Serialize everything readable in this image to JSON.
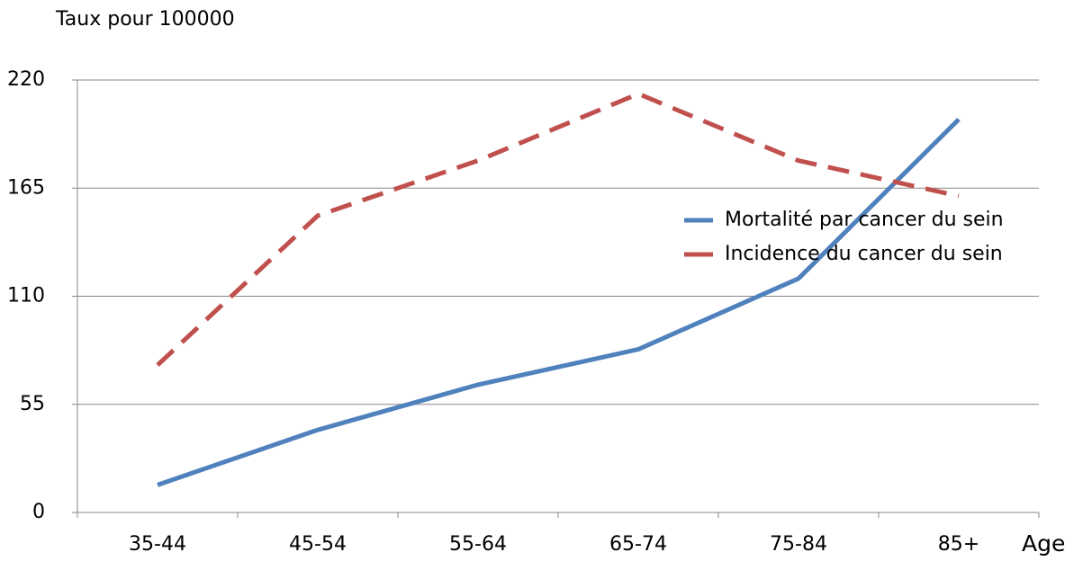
{
  "chart_data": {
    "type": "line",
    "y_axis_title": "Taux pour 100000",
    "x_axis_title": "Age",
    "categories": [
      "35-44",
      "45-54",
      "55-64",
      "65-74",
      "75-84",
      "85+"
    ],
    "series": [
      {
        "name": "Mortalité par cancer du sein",
        "color": "#4f81bd",
        "dashed": false,
        "values": [
          14,
          42,
          65,
          83,
          119,
          200
        ]
      },
      {
        "name": "Incidence du cancer du sein",
        "color": "#c0504d",
        "dashed": true,
        "values": [
          75,
          151,
          179,
          213,
          179,
          161
        ]
      }
    ],
    "ylim": [
      0,
      220
    ],
    "yticks": [
      0,
      55,
      110,
      165,
      220
    ],
    "grid": true,
    "legend": "right"
  }
}
